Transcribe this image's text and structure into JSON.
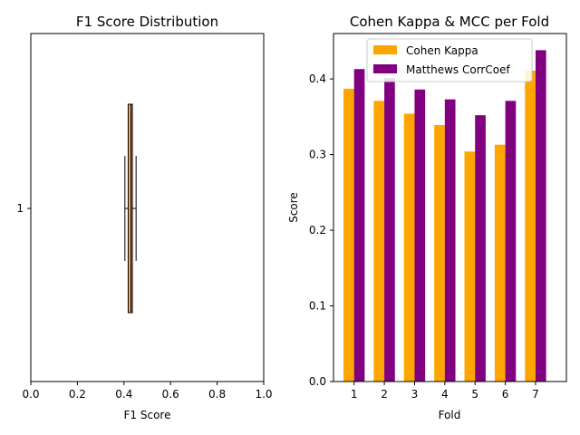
{
  "chart_data": [
    {
      "type": "box",
      "title": "F1 Score Distribution",
      "xlabel": "F1 Score",
      "ylabel": "",
      "orientation": "horizontal",
      "xlim": [
        0,
        1
      ],
      "xticks": [
        "0.0",
        "0.2",
        "0.4",
        "0.6",
        "0.8",
        "1.0"
      ],
      "yticks": [
        "1"
      ],
      "box": {
        "category": "1",
        "whisker_low": 0.404,
        "q1": 0.418,
        "median": 0.43,
        "q3": 0.436,
        "whisker_high": 0.452
      },
      "color": "#f4a460"
    },
    {
      "type": "bar",
      "title": "Cohen Kappa & MCC per Fold",
      "xlabel": "Fold",
      "ylabel": "Score",
      "ylim": [
        0,
        0.46
      ],
      "categories": [
        "1",
        "2",
        "3",
        "4",
        "5",
        "6",
        "7"
      ],
      "yticks": [
        "0.0",
        "0.1",
        "0.2",
        "0.3",
        "0.4"
      ],
      "legend_position": "top",
      "series": [
        {
          "name": "Cohen Kappa",
          "color": "#ffa500",
          "values": [
            0.387,
            0.371,
            0.354,
            0.339,
            0.304,
            0.313,
            0.411
          ]
        },
        {
          "name": "Matthews CorrCoef",
          "color": "#800080",
          "values": [
            0.413,
            0.401,
            0.386,
            0.373,
            0.352,
            0.371,
            0.438
          ]
        }
      ]
    }
  ]
}
